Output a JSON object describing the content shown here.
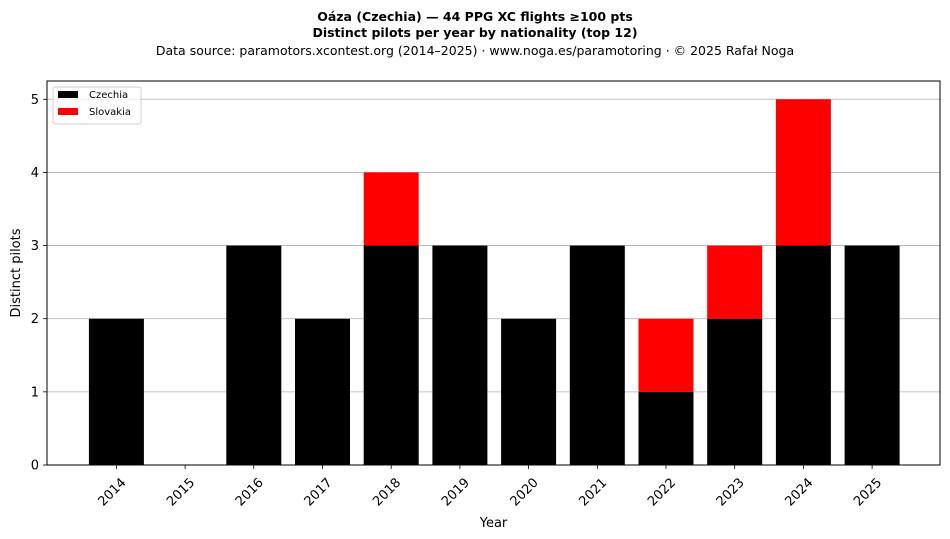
{
  "chart_data": {
    "type": "bar",
    "stacked": true,
    "title_lines": [
      "Oáza (Czechia)  —  44 PPG XC flights ≥100 pts",
      "Distinct pilots per year by nationality (top 12)"
    ],
    "subtitle": "Data source: paramotors.xcontest.org (2014–2025)  ·  www.noga.es/paramotoring  ·  © 2025 Rafał Noga",
    "xlabel": "Year",
    "ylabel": "Distinct pilots",
    "ylim": [
      0,
      5.25
    ],
    "yticks": [
      0,
      1,
      2,
      3,
      4,
      5
    ],
    "grid": "y",
    "legend_position": "top-left",
    "categories": [
      "2014",
      "2015",
      "2016",
      "2017",
      "2018",
      "2019",
      "2020",
      "2021",
      "2022",
      "2023",
      "2024",
      "2025"
    ],
    "series": [
      {
        "name": "Czechia",
        "color": "#000000",
        "values": [
          2,
          0,
          3,
          2,
          3,
          3,
          2,
          3,
          1,
          2,
          3,
          3
        ]
      },
      {
        "name": "Slovakia",
        "color": "#ff0000",
        "values": [
          0,
          0,
          0,
          0,
          1,
          0,
          0,
          0,
          1,
          1,
          2,
          0
        ]
      }
    ]
  }
}
